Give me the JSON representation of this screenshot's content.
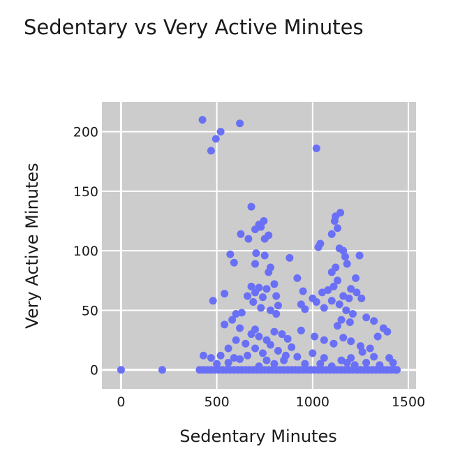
{
  "chart_data": {
    "type": "scatter",
    "title": "Sedentary vs Very Active Minutes",
    "xlabel": "Sedentary Minutes",
    "ylabel": "Very Active Minutes",
    "xlim": [
      -100,
      1540
    ],
    "ylim": [
      -16,
      225
    ],
    "xticks": [
      0,
      500,
      1000,
      1500
    ],
    "yticks": [
      0,
      50,
      100,
      150,
      200
    ],
    "grid": true,
    "colors": {
      "marker": "#6a70f5",
      "plot_background": "#cccccc",
      "grid": "#ffffff"
    },
    "series": [
      {
        "points": [
          [
            0,
            0
          ],
          [
            215,
            0
          ],
          [
            425,
            210
          ],
          [
            470,
            184
          ],
          [
            495,
            194
          ],
          [
            520,
            200
          ],
          [
            620,
            207
          ],
          [
            1020,
            186
          ],
          [
            680,
            137
          ],
          [
            745,
            125
          ],
          [
            720,
            122
          ],
          [
            700,
            118
          ],
          [
            730,
            120
          ],
          [
            770,
            113
          ],
          [
            625,
            114
          ],
          [
            750,
            110
          ],
          [
            665,
            110
          ],
          [
            705,
            98
          ],
          [
            570,
            97
          ],
          [
            750,
            96
          ],
          [
            1120,
            129
          ],
          [
            1115,
            125
          ],
          [
            1145,
            132
          ],
          [
            1130,
            119
          ],
          [
            1100,
            114
          ],
          [
            1160,
            100
          ],
          [
            1170,
            95
          ],
          [
            1140,
            102
          ],
          [
            1030,
            103
          ],
          [
            1040,
            106
          ],
          [
            1245,
            96
          ],
          [
            1180,
            89
          ],
          [
            1120,
            86
          ],
          [
            1100,
            82
          ],
          [
            1225,
            77
          ],
          [
            1130,
            75
          ],
          [
            1200,
            68
          ],
          [
            1110,
            70
          ],
          [
            800,
            72
          ],
          [
            880,
            94
          ],
          [
            700,
            89
          ],
          [
            590,
            90
          ],
          [
            780,
            86
          ],
          [
            920,
            77
          ],
          [
            770,
            82
          ],
          [
            680,
            70
          ],
          [
            720,
            69
          ],
          [
            760,
            68
          ],
          [
            700,
            65
          ],
          [
            740,
            61
          ],
          [
            660,
            62
          ],
          [
            690,
            57
          ],
          [
            810,
            62
          ],
          [
            820,
            54
          ],
          [
            780,
            50
          ],
          [
            730,
            52
          ],
          [
            810,
            47
          ],
          [
            540,
            64
          ],
          [
            480,
            58
          ],
          [
            600,
            47
          ],
          [
            630,
            48
          ],
          [
            580,
            42
          ],
          [
            950,
            66
          ],
          [
            1050,
            65
          ],
          [
            1080,
            67
          ],
          [
            1000,
            60
          ],
          [
            940,
            55
          ],
          [
            1020,
            57
          ],
          [
            1060,
            52
          ],
          [
            960,
            51
          ],
          [
            1100,
            58
          ],
          [
            1140,
            55
          ],
          [
            1160,
            62
          ],
          [
            1190,
            60
          ],
          [
            1230,
            65
          ],
          [
            1255,
            60
          ],
          [
            1175,
            50
          ],
          [
            1210,
            47
          ],
          [
            1150,
            42
          ],
          [
            1195,
            40
          ],
          [
            1280,
            44
          ],
          [
            1320,
            41
          ],
          [
            1130,
            37
          ],
          [
            540,
            38
          ],
          [
            620,
            35
          ],
          [
            680,
            30
          ],
          [
            720,
            28
          ],
          [
            700,
            34
          ],
          [
            760,
            25
          ],
          [
            800,
            32
          ],
          [
            840,
            30
          ],
          [
            870,
            26
          ],
          [
            780,
            21
          ],
          [
            650,
            22
          ],
          [
            600,
            25
          ],
          [
            560,
            18
          ],
          [
            520,
            12
          ],
          [
            470,
            10
          ],
          [
            430,
            12
          ],
          [
            940,
            33
          ],
          [
            1010,
            28
          ],
          [
            1060,
            25
          ],
          [
            1110,
            22
          ],
          [
            1160,
            27
          ],
          [
            1200,
            24
          ],
          [
            1250,
            20
          ],
          [
            1300,
            18
          ],
          [
            1340,
            28
          ],
          [
            1370,
            35
          ],
          [
            1390,
            32
          ],
          [
            1260,
            15
          ],
          [
            1320,
            11
          ],
          [
            1200,
            10
          ],
          [
            1180,
            6
          ],
          [
            1060,
            10
          ],
          [
            1000,
            14
          ],
          [
            960,
            5
          ],
          [
            920,
            11
          ],
          [
            660,
            12
          ],
          [
            700,
            18
          ],
          [
            740,
            14
          ],
          [
            760,
            8
          ],
          [
            820,
            16
          ],
          [
            860,
            12
          ],
          [
            890,
            19
          ],
          [
            620,
            9
          ],
          [
            560,
            6
          ],
          [
            500,
            5
          ],
          [
            590,
            10
          ],
          [
            720,
            3
          ],
          [
            800,
            5
          ],
          [
            850,
            8
          ],
          [
            1040,
            5
          ],
          [
            1100,
            3
          ],
          [
            1150,
            8
          ],
          [
            1220,
            4
          ],
          [
            1280,
            6
          ],
          [
            1350,
            4
          ],
          [
            1400,
            10
          ],
          [
            1420,
            6
          ],
          [
            410,
            0
          ],
          [
            430,
            0
          ],
          [
            450,
            0
          ],
          [
            470,
            0
          ],
          [
            490,
            0
          ],
          [
            510,
            0
          ],
          [
            530,
            0
          ],
          [
            550,
            0
          ],
          [
            570,
            0
          ],
          [
            590,
            0
          ],
          [
            610,
            0
          ],
          [
            630,
            0
          ],
          [
            650,
            0
          ],
          [
            670,
            0
          ],
          [
            690,
            0
          ],
          [
            710,
            0
          ],
          [
            730,
            0
          ],
          [
            750,
            0
          ],
          [
            770,
            0
          ],
          [
            790,
            0
          ],
          [
            810,
            0
          ],
          [
            830,
            0
          ],
          [
            850,
            0
          ],
          [
            870,
            0
          ],
          [
            890,
            0
          ],
          [
            910,
            0
          ],
          [
            930,
            0
          ],
          [
            950,
            0
          ],
          [
            970,
            0
          ],
          [
            990,
            0
          ],
          [
            1010,
            0
          ],
          [
            1030,
            0
          ],
          [
            1050,
            0
          ],
          [
            1070,
            0
          ],
          [
            1090,
            0
          ],
          [
            1110,
            0
          ],
          [
            1130,
            0
          ],
          [
            1150,
            0
          ],
          [
            1170,
            0
          ],
          [
            1190,
            0
          ],
          [
            1210,
            0
          ],
          [
            1230,
            0
          ],
          [
            1250,
            0
          ],
          [
            1270,
            0
          ],
          [
            1290,
            0
          ],
          [
            1310,
            0
          ],
          [
            1330,
            0
          ],
          [
            1350,
            0
          ],
          [
            1370,
            0
          ],
          [
            1390,
            0
          ],
          [
            1410,
            0
          ],
          [
            1430,
            0
          ],
          [
            1440,
            0
          ]
        ]
      }
    ]
  }
}
